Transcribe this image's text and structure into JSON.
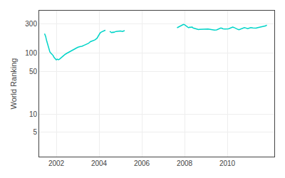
{
  "chart_data": {
    "type": "line",
    "ylabel": "World Ranking",
    "log": "y",
    "grid": true,
    "color": "#00d4c8",
    "xlim": [
      2001.2,
      2012.2
    ],
    "xticks": [
      2002,
      2004,
      2006,
      2008,
      2010
    ],
    "ylim": [
      2.0,
      500
    ],
    "yticks": [
      5,
      10,
      50,
      100,
      300
    ],
    "x": [
      2001.45,
      2001.5,
      2001.55,
      2001.6,
      2001.65,
      2001.7,
      2001.75,
      2001.8,
      2001.85,
      2001.9,
      2001.95,
      2002.0,
      2002.05,
      2002.1,
      2002.15,
      2002.2,
      2002.25,
      2002.3,
      2002.4,
      2002.5,
      2002.6,
      2002.7,
      2002.8,
      2002.9,
      2003.0,
      2003.1,
      2003.2,
      2003.3,
      2003.4,
      2003.5,
      2003.6,
      2003.7,
      2003.8,
      2003.9,
      2004.0,
      2004.05,
      2004.1,
      2004.15,
      2004.2,
      2004.25,
      2004.3,
      null,
      2004.5,
      2004.55,
      2004.6,
      2004.65,
      2004.7,
      2004.75,
      2004.8,
      2005.0,
      2005.1,
      2005.15,
      2005.2,
      null,
      2007.65,
      2007.7,
      2007.75,
      2007.8,
      2007.85,
      2007.9,
      2007.95,
      2008.0,
      2008.05,
      2008.1,
      2008.15,
      2008.2,
      2008.25,
      2008.3,
      2008.35,
      2008.4,
      2008.5,
      2008.55,
      2008.6,
      2008.65,
      2008.7,
      2008.8,
      2008.9,
      2009.0,
      2009.1,
      2009.2,
      2009.3,
      2009.4,
      2009.5,
      2009.6,
      2009.65,
      2009.7,
      2009.75,
      2009.8,
      2009.9,
      2010.0,
      2010.05,
      2010.1,
      2010.15,
      2010.2,
      2010.25,
      2010.3,
      2010.35,
      2010.4,
      2010.45,
      2010.5,
      2010.55,
      2010.6,
      2010.65,
      2010.7,
      2010.75,
      2010.8,
      2010.85,
      2010.9,
      2010.95,
      2011.0,
      2011.05,
      2011.1,
      2011.2,
      2011.3,
      2011.35,
      2011.4,
      2011.5,
      2011.6,
      2011.65,
      2011.7,
      2011.75,
      2011.8,
      2011.85
    ],
    "values": [
      210,
      190,
      160,
      140,
      120,
      105,
      100,
      97,
      92,
      85,
      80,
      78,
      80,
      78,
      80,
      83,
      86,
      90,
      95,
      100,
      105,
      110,
      115,
      120,
      125,
      128,
      130,
      135,
      140,
      145,
      155,
      160,
      165,
      175,
      205,
      215,
      222,
      228,
      232,
      235,
      238,
      null,
      228,
      222,
      218,
      222,
      220,
      225,
      228,
      232,
      228,
      232,
      235,
      null,
      262,
      268,
      275,
      280,
      285,
      290,
      297,
      295,
      283,
      272,
      268,
      263,
      268,
      266,
      270,
      260,
      253,
      250,
      248,
      245,
      246,
      248,
      250,
      252,
      250,
      247,
      244,
      240,
      242,
      250,
      255,
      260,
      257,
      252,
      250,
      248,
      252,
      255,
      260,
      265,
      268,
      266,
      260,
      254,
      248,
      246,
      244,
      248,
      252,
      256,
      262,
      264,
      261,
      258,
      254,
      257,
      261,
      263,
      260,
      256,
      258,
      262,
      267,
      270,
      274,
      272,
      276,
      282,
      290
    ]
  }
}
